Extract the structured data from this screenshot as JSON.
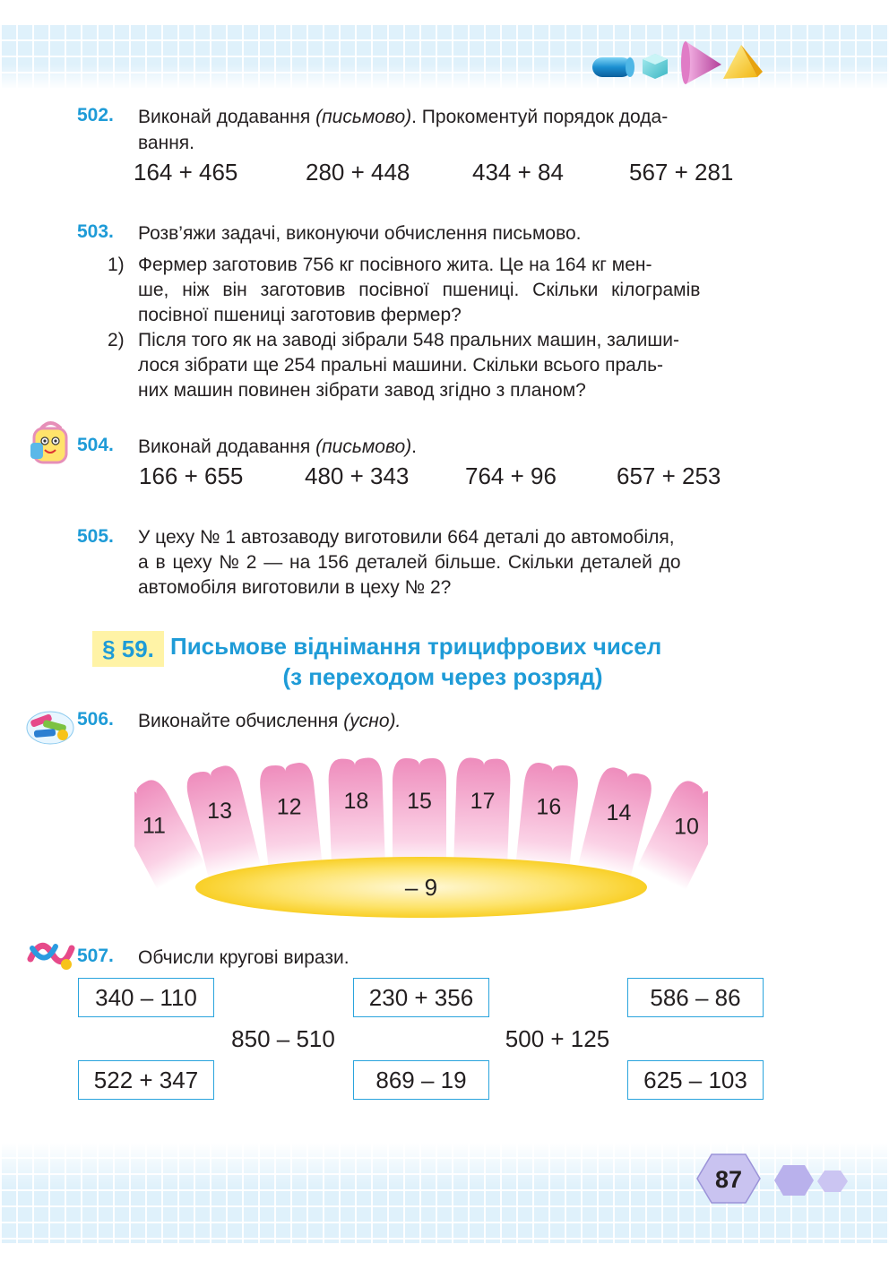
{
  "page_number": "87",
  "colors": {
    "accent": "#1e9bd7",
    "badge_bg": "#fff3a6",
    "petal": "#f3a7c8",
    "center": "#f7d21a"
  },
  "decor": {
    "top_shapes": [
      "cylinder-icon",
      "cube-icon",
      "cone-icon",
      "pyramid-icon"
    ],
    "mascot_icons": [
      "backpack-icon",
      "pencils-icon",
      "ribbon-icon"
    ]
  },
  "ex502": {
    "num": "502.",
    "text_a": "Виконай додавання ",
    "text_it": "(письмово)",
    "text_b": ". Прокоментуй порядок дода-",
    "text_c": "вання.",
    "exprs": [
      "164 + 465",
      "280 + 448",
      "434 + 84",
      "567 + 281"
    ]
  },
  "ex503": {
    "num": "503.",
    "intro": "Розв’яжи задачі, виконуючи обчислення письмово.",
    "items": [
      {
        "marker": "1)",
        "lines": [
          "Фермер заготовив 756 кг посівного жита. Це на 164 кг мен-",
          "ше, ніж він заготовив посівної пшениці. Скільки кілограмів",
          "посівної пшениці заготовив фермер?"
        ]
      },
      {
        "marker": "2)",
        "lines": [
          "Після того як на заводі зібрали 548 пральних машин, залиши-",
          "лося зібрати ще 254 пральні машини. Скільки всього праль-",
          "них машин повинен зібрати завод згідно з планом?"
        ]
      }
    ]
  },
  "ex504": {
    "num": "504.",
    "text_a": "Виконай додавання ",
    "text_it": "(письмово)",
    "text_b": ".",
    "exprs": [
      "166 + 655",
      "480 + 343",
      "764 + 96",
      "657 + 253"
    ]
  },
  "ex505": {
    "num": "505.",
    "lines": [
      "У цеху № 1 автозаводу виготовили 664 деталі до автомобіля,",
      "а в цеху № 2 — на 156 деталей більше. Скільки деталей до",
      "автомобіля виготовили в цеху № 2?"
    ]
  },
  "section": {
    "badge": "§ 59.",
    "title_line1": "Письмове віднімання трицифрових чисел",
    "title_line2": "(з переходом через розряд)"
  },
  "ex506": {
    "num": "506.",
    "text_a": "Виконайте обчислення ",
    "text_it": "(усно).",
    "petals": [
      "11",
      "13",
      "12",
      "18",
      "15",
      "17",
      "16",
      "14",
      "10"
    ],
    "center": "– 9"
  },
  "ex507": {
    "num": "507.",
    "text": "Обчисли кругові вирази.",
    "row1": [
      "340 – 110",
      "230 + 356",
      "586 – 86"
    ],
    "row2": [
      "850 – 510",
      "500 + 125"
    ],
    "row3": [
      "522 + 347",
      "869 – 19",
      "625 – 103"
    ]
  }
}
